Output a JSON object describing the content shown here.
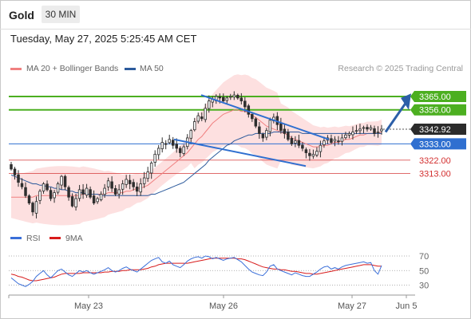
{
  "header": {
    "title": "Gold",
    "timeframe": "30 MIN",
    "datetime": "Tuesday, May 27, 2025 5:25:45 AM CET",
    "copyright": "Research © 2025 Trading Central"
  },
  "legend": {
    "ma20": {
      "label": "MA 20 + Bollinger Bands",
      "color": "#f08080"
    },
    "ma50": {
      "label": "MA 50",
      "color": "#2c5a9c"
    },
    "rsi": {
      "label": "RSI",
      "color": "#3b6fd9"
    },
    "ma9": {
      "label": "9MA",
      "color": "#d81b1b"
    }
  },
  "colors": {
    "bull_candle": "#2e2e2e",
    "bear_candle": "#2e2e2e",
    "bollinger_fill": "#fcd6d6",
    "resistance": "#4caf20",
    "support": "#2f6fd0",
    "level_red": "#d32f2f",
    "current": "#2b2b2b",
    "arrow": "#2c5fa8"
  },
  "chart_data": [
    {
      "type": "candlestick",
      "title": "Gold",
      "x_labels": [
        "May 23",
        "May 26",
        "May 27",
        "Jun 5"
      ],
      "ylim": [
        3270,
        3380
      ],
      "price_labels": [
        {
          "value": 3365.0,
          "text": "3365.00",
          "kind": "resistance"
        },
        {
          "value": 3356.0,
          "text": "3356.00",
          "kind": "resistance"
        },
        {
          "value": 3342.92,
          "text": "3342.92",
          "kind": "current"
        },
        {
          "value": 3333.0,
          "text": "3333.00",
          "kind": "support"
        },
        {
          "value": 3322.0,
          "text": "3322.00",
          "kind": "level"
        },
        {
          "value": 3313.0,
          "text": "3313.00",
          "kind": "level"
        }
      ],
      "close": [
        3316,
        3312,
        3307,
        3304,
        3298,
        3293,
        3287,
        3294,
        3301,
        3306,
        3302,
        3296,
        3300,
        3306,
        3311,
        3304,
        3297,
        3291,
        3296,
        3302,
        3299,
        3303,
        3297,
        3293,
        3296,
        3299,
        3303,
        3308,
        3303,
        3299,
        3302,
        3306,
        3309,
        3306,
        3304,
        3301,
        3306,
        3310,
        3314,
        3320,
        3326,
        3330,
        3334,
        3333,
        3336,
        3332,
        3330,
        3327,
        3331,
        3337,
        3342,
        3348,
        3352,
        3350,
        3357,
        3362,
        3363,
        3365,
        3364,
        3362,
        3364,
        3365,
        3366,
        3364,
        3362,
        3358,
        3353,
        3350,
        3345,
        3340,
        3337,
        3342,
        3349,
        3351,
        3346,
        3342,
        3340,
        3336,
        3333,
        3335,
        3332,
        3330,
        3327,
        3325,
        3326,
        3328,
        3332,
        3335,
        3337,
        3334,
        3336,
        3335,
        3337,
        3339,
        3340,
        3341,
        3342,
        3343,
        3344,
        3343,
        3344,
        3340,
        3341,
        3342.92
      ],
      "ma20": [
        3297,
        3297,
        3297,
        3297,
        3297,
        3297,
        3297,
        3298,
        3298,
        3298,
        3298,
        3298,
        3298,
        3298,
        3298,
        3298,
        3298,
        3298,
        3298,
        3298,
        3299,
        3299,
        3299,
        3299,
        3299,
        3299,
        3299,
        3300,
        3300,
        3300,
        3300,
        3300,
        3301,
        3301,
        3302,
        3303,
        3303,
        3304,
        3305,
        3307,
        3309,
        3311,
        3313,
        3315,
        3317,
        3319,
        3321,
        3323,
        3325,
        3327,
        3330,
        3333,
        3336,
        3338,
        3341,
        3344,
        3347,
        3349,
        3351,
        3353,
        3354,
        3355,
        3356,
        3356,
        3355,
        3355,
        3354,
        3352,
        3351,
        3349,
        3347,
        3345,
        3344,
        3343,
        3342,
        3341,
        3340,
        3339,
        3337,
        3336,
        3335,
        3334,
        3333,
        3332,
        3331,
        3331,
        3331,
        3332,
        3332,
        3333,
        3334,
        3334,
        3335,
        3336,
        3336,
        3337,
        3338,
        3339,
        3339,
        3340,
        3340,
        3340,
        3340,
        3341
      ],
      "ma50": [
        3312,
        3311,
        3310,
        3309,
        3308,
        3307,
        3306,
        3306,
        3305,
        3305,
        3304,
        3304,
        3303,
        3303,
        3302,
        3302,
        3301,
        3301,
        3300,
        3300,
        3300,
        3299,
        3299,
        3299,
        3299,
        3298,
        3298,
        3298,
        3298,
        3298,
        3298,
        3298,
        3298,
        3298,
        3298,
        3298,
        3298,
        3298,
        3298,
        3299,
        3299,
        3300,
        3301,
        3302,
        3303,
        3304,
        3305,
        3306,
        3307,
        3309,
        3311,
        3313,
        3315,
        3317,
        3319,
        3322,
        3324,
        3326,
        3328,
        3330,
        3332,
        3333,
        3335,
        3336,
        3337,
        3338,
        3339,
        3339,
        3340,
        3340,
        3340,
        3340,
        3340,
        3341,
        3341,
        3341,
        3341,
        3341,
        3341,
        3341,
        3341,
        3340,
        3340,
        3340,
        3340,
        3340,
        3340,
        3340,
        3340,
        3340,
        3340,
        3340,
        3340,
        3340,
        3340,
        3340,
        3340,
        3340,
        3340,
        3340,
        3340,
        3340,
        3340,
        3340
      ]
    },
    {
      "type": "line",
      "title": "RSI",
      "ylim": [
        20,
        80
      ],
      "y_ticks": [
        70,
        50,
        30
      ],
      "series": [
        {
          "name": "RSI",
          "values": [
            40,
            36,
            32,
            30,
            28,
            31,
            35,
            42,
            46,
            50,
            44,
            40,
            45,
            50,
            52,
            48,
            44,
            42,
            46,
            50,
            48,
            50,
            47,
            45,
            47,
            49,
            51,
            54,
            50,
            48,
            50,
            53,
            55,
            52,
            50,
            48,
            52,
            56,
            60,
            64,
            66,
            68,
            62,
            60,
            63,
            58,
            56,
            54,
            58,
            63,
            66,
            68,
            69,
            67,
            70,
            69,
            66,
            68,
            66,
            64,
            66,
            67,
            68,
            65,
            62,
            57,
            52,
            48,
            46,
            44,
            43,
            48,
            56,
            58,
            52,
            50,
            48,
            46,
            44,
            47,
            45,
            43,
            42,
            42,
            45,
            48,
            52,
            55,
            56,
            52,
            54,
            52,
            55,
            57,
            58,
            59,
            60,
            61,
            62,
            60,
            61,
            50,
            45,
            57
          ]
        },
        {
          "name": "9MA",
          "values": [
            45,
            44,
            42,
            41,
            39,
            37,
            36,
            36,
            37,
            38,
            39,
            40,
            41,
            43,
            45,
            46,
            46,
            46,
            46,
            46,
            47,
            47,
            47,
            47,
            47,
            47,
            48,
            48,
            49,
            49,
            49,
            50,
            50,
            51,
            51,
            51,
            51,
            52,
            53,
            55,
            56,
            58,
            59,
            60,
            60,
            60,
            60,
            60,
            60,
            60,
            61,
            62,
            63,
            64,
            65,
            66,
            67,
            67,
            67,
            67,
            67,
            67,
            67,
            66,
            66,
            65,
            63,
            61,
            59,
            57,
            55,
            54,
            53,
            52,
            52,
            51,
            51,
            50,
            49,
            49,
            48,
            47,
            46,
            46,
            45,
            45,
            46,
            47,
            48,
            49,
            50,
            51,
            52,
            53,
            54,
            55,
            56,
            57,
            58,
            58,
            58,
            57,
            56,
            56
          ]
        }
      ]
    }
  ]
}
